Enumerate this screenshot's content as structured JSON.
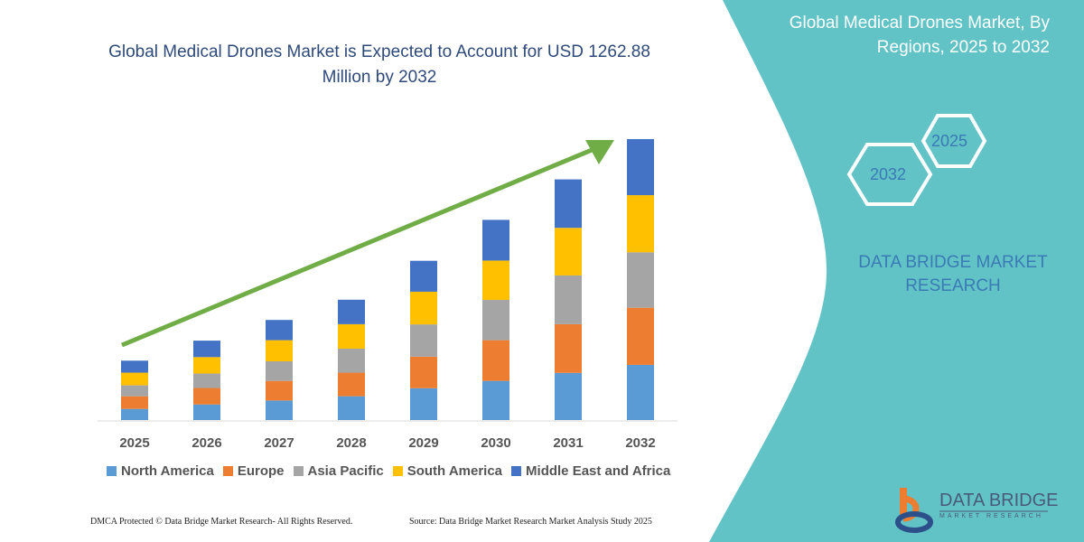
{
  "header": {
    "title": "Global Medical Drones Market is Expected to Account for USD 1262.88 Million by 2032",
    "side_title": "Global Medical Drones Market, By Regions, 2025 to 2032"
  },
  "badges": {
    "start_year": "2025",
    "end_year": "2032"
  },
  "brand": {
    "name": "DATA BRIDGE MARKET RESEARCH",
    "logo_text": "DATA BRIDGE",
    "logo_sub": "MARKET RESEARCH"
  },
  "footer": {
    "left": "DMCA Protected © Data Bridge Market Research-  All Rights Reserved.",
    "right": "Source: Data Bridge Market Research  Market Analysis Study 2025"
  },
  "colors": {
    "panel": "#62c3c7",
    "arrow": "#70ad47",
    "title": "#2e4a7a"
  },
  "chart_data": {
    "type": "bar",
    "stacked": true,
    "categories": [
      "2025",
      "2026",
      "2027",
      "2028",
      "2029",
      "2030",
      "2031",
      "2032"
    ],
    "series": [
      {
        "name": "North America",
        "color": "#5b9bd5",
        "values": [
          50,
          70,
          88,
          107,
          143,
          176,
          212,
          248
        ]
      },
      {
        "name": "Europe",
        "color": "#ed7d31",
        "values": [
          57,
          74,
          88,
          106,
          142,
          183,
          219,
          257
        ]
      },
      {
        "name": "Asia Pacific",
        "color": "#a5a5a5",
        "values": [
          49,
          65,
          88,
          108,
          145,
          181,
          219,
          249
        ]
      },
      {
        "name": "South America",
        "color": "#ffc000",
        "values": [
          57,
          74,
          95,
          110,
          147,
          177,
          214,
          257
        ]
      },
      {
        "name": "Middle East and Africa",
        "color": "#4472c4",
        "values": [
          54,
          74,
          91,
          110,
          139,
          183,
          218,
          252
        ]
      }
    ],
    "ylim": [
      0,
      1263
    ],
    "grid": false,
    "legend": "bottom",
    "trend_arrow": true
  }
}
